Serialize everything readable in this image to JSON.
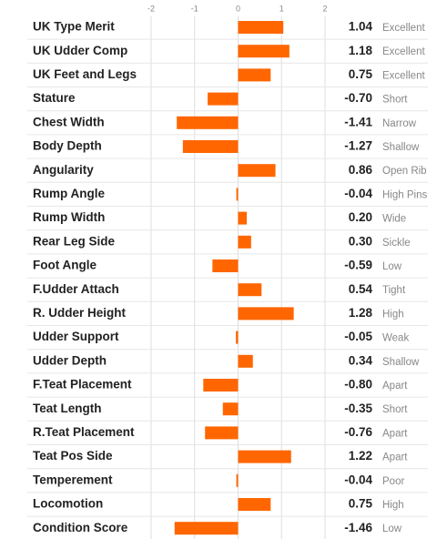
{
  "chart_data": {
    "type": "bar",
    "orientation": "horizontal",
    "categories": [
      "UK Type Merit",
      "UK Udder Comp",
      "UK Feet and Legs",
      "Stature",
      "Chest Width",
      "Body Depth",
      "Angularity",
      "Rump Angle",
      "Rump Width",
      "Rear Leg Side",
      "Foot Angle",
      "F.Udder Attach",
      "R. Udder Height",
      "Udder Support",
      "Udder Depth",
      "F.Teat Placement",
      "Teat Length",
      "R.Teat Placement",
      "Teat Pos Side",
      "Temperement",
      "Locomotion",
      "Condition Score"
    ],
    "values": [
      1.04,
      1.18,
      0.75,
      -0.7,
      -1.41,
      -1.27,
      0.86,
      -0.04,
      0.2,
      0.3,
      -0.59,
      0.54,
      1.28,
      -0.05,
      0.34,
      -0.8,
      -0.35,
      -0.76,
      1.22,
      -0.04,
      0.75,
      -1.46
    ],
    "value_labels": [
      "1.04",
      "1.18",
      "0.75",
      "-0.70",
      "-1.41",
      "-1.27",
      "0.86",
      "-0.04",
      "0.20",
      "0.30",
      "-0.59",
      "0.54",
      "1.28",
      "-0.05",
      "0.34",
      "-0.80",
      "-0.35",
      "-0.76",
      "1.22",
      "-0.04",
      "0.75",
      "-1.46"
    ],
    "descriptors": [
      "Excellent",
      "Excellent",
      "Excellent",
      "Short",
      "Narrow",
      "Shallow",
      "Open Rib",
      "High Pins",
      "Wide",
      "Sickle",
      "Low",
      "Tight",
      "High",
      "Weak",
      "Shallow",
      "Apart",
      "Short",
      "Apart",
      "Apart",
      "Poor",
      "High",
      "Low"
    ],
    "color": "#ff6600",
    "xlim": [
      -2,
      2
    ],
    "xticks": [
      -2,
      -1,
      0,
      1,
      2
    ],
    "grid": true
  }
}
